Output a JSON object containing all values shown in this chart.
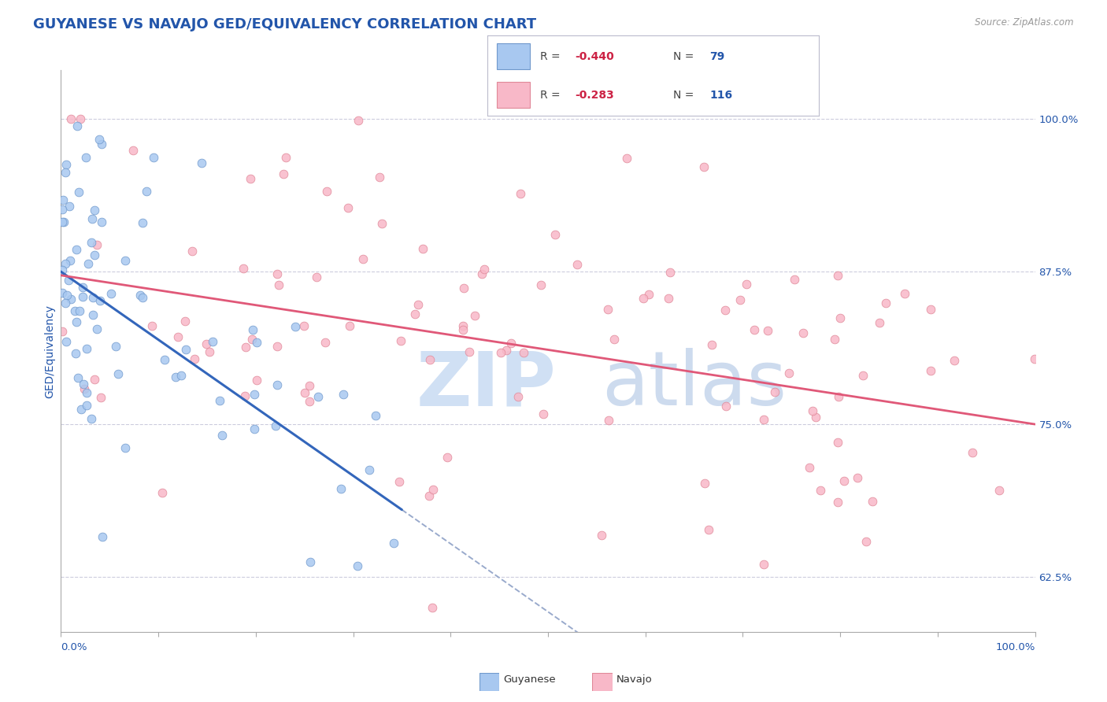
{
  "title": "GUYANESE VS NAVAJO GED/EQUIVALENCY CORRELATION CHART",
  "source_text": "Source: ZipAtlas.com",
  "ylabel": "GED/Equivalency",
  "y_ticks": [
    62.5,
    75.0,
    87.5,
    100.0
  ],
  "y_tick_labels": [
    "62.5%",
    "75.0%",
    "87.5%",
    "100.0%"
  ],
  "xlim": [
    0.0,
    100.0
  ],
  "ylim": [
    58.0,
    104.0
  ],
  "guyanese_color": "#a8c8f0",
  "navajo_color": "#f8b8c8",
  "guyanese_edge": "#7099cc",
  "navajo_edge": "#e08898",
  "regression_guyanese_color": "#3366bb",
  "regression_navajo_color": "#e05878",
  "regression_dashed_color": "#99aacc",
  "title_color": "#2255aa",
  "tick_color": "#2255aa",
  "legend_R_color": "#cc2244",
  "legend_N_color": "#2255aa",
  "background_color": "#ffffff",
  "R_guyanese": -0.44,
  "N_guyanese": 79,
  "R_navajo": -0.283,
  "N_navajo": 116,
  "title_fontsize": 13,
  "axis_fontsize": 10,
  "tick_fontsize": 9.5,
  "reg_g_x0": 0.0,
  "reg_g_y0": 87.5,
  "reg_g_x1": 35.0,
  "reg_g_y1": 68.0,
  "reg_n_x0": 0.0,
  "reg_n_y0": 87.2,
  "reg_n_x1": 100.0,
  "reg_n_y1": 75.0,
  "reg_dash_x0": 35.0,
  "reg_dash_x1": 57.0
}
